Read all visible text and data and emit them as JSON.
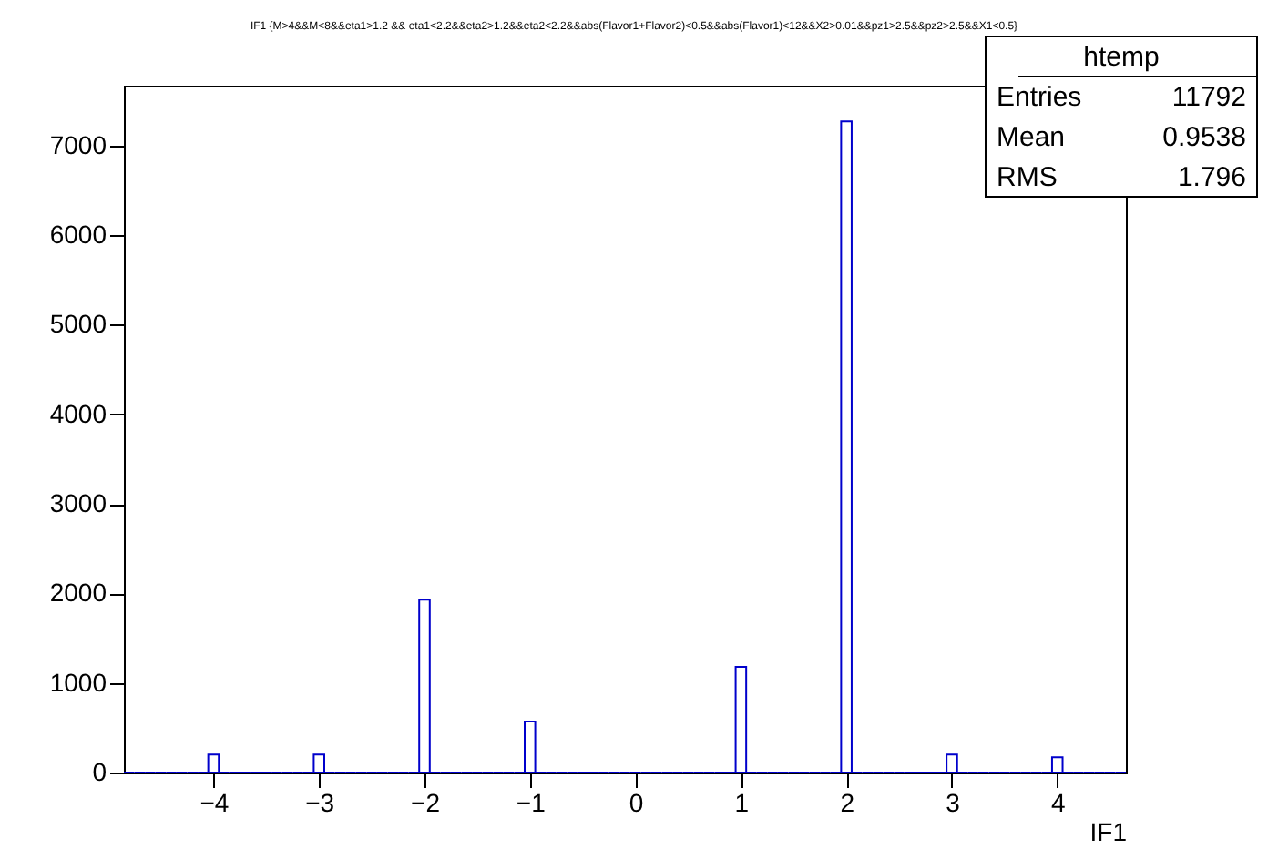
{
  "chart_data": {
    "type": "histogram",
    "title": "IF1 {M>4&&M<8&&eta1>1.2 && eta1<2.2&&eta2>1.2&&eta2<2.2&&abs(Flavor1+Flavor2)<0.5&&abs(Flavor1)<12&&X2>0.01&&pz1>2.5&&pz2>2.5&&X1<0.5}",
    "xlabel": "IF1",
    "bins": [
      -4.85,
      -4.75,
      -4.65,
      -4.55,
      -4.45,
      -4.35,
      -4.25,
      -4.15,
      -4.05,
      -3.95,
      -3.85,
      -3.75,
      -3.65,
      -3.55,
      -3.45,
      -3.35,
      -3.25,
      -3.15,
      -3.05,
      -2.95,
      -2.85,
      -2.75,
      -2.65,
      -2.55,
      -2.45,
      -2.35,
      -2.25,
      -2.15,
      -2.05,
      -1.95,
      -1.85,
      -1.75,
      -1.65,
      -1.55,
      -1.45,
      -1.35,
      -1.25,
      -1.15,
      -1.05,
      -0.95,
      -0.85,
      -0.75,
      -0.65,
      -0.55,
      -0.45,
      -0.35,
      -0.25,
      -0.15,
      -0.05,
      0.05,
      0.15,
      0.25,
      0.35,
      0.45,
      0.55,
      0.65,
      0.75,
      0.85,
      0.95,
      1.05,
      1.15,
      1.25,
      1.35,
      1.45,
      1.55,
      1.65,
      1.75,
      1.85,
      1.95,
      2.05,
      2.15,
      2.25,
      2.35,
      2.45,
      2.55,
      2.65,
      2.75,
      2.85,
      2.95,
      3.05,
      3.15,
      3.25,
      3.35,
      3.45,
      3.55,
      3.65,
      3.75,
      3.85,
      3.95,
      4.05,
      4.15,
      4.25,
      4.35,
      4.45,
      4.55,
      4.65
    ],
    "values": [
      0,
      0,
      0,
      0,
      0,
      0,
      0,
      0,
      200,
      0,
      0,
      0,
      0,
      0,
      0,
      0,
      0,
      0,
      200,
      0,
      0,
      0,
      0,
      0,
      0,
      0,
      0,
      0,
      1930,
      0,
      0,
      0,
      0,
      0,
      0,
      0,
      0,
      0,
      570,
      0,
      0,
      0,
      0,
      0,
      0,
      0,
      0,
      0,
      0,
      0,
      0,
      0,
      0,
      0,
      0,
      0,
      0,
      0,
      1180,
      0,
      0,
      0,
      0,
      0,
      0,
      0,
      0,
      0,
      7270,
      0,
      0,
      0,
      0,
      0,
      0,
      0,
      0,
      0,
      200,
      0,
      0,
      0,
      0,
      0,
      0,
      0,
      0,
      0,
      170,
      0,
      0,
      0,
      0,
      0,
      0
    ],
    "color": "#0000cc",
    "xlim": [
      -4.85,
      4.65
    ],
    "xticks": [
      -4,
      -3,
      -2,
      -1,
      0,
      1,
      2,
      3,
      4
    ],
    "ylim": [
      0,
      7670
    ],
    "yticks": [
      0,
      1000,
      2000,
      3000,
      4000,
      5000,
      6000,
      7000
    ],
    "grid": false,
    "annotations": [
      "htemp",
      "Entries 11792",
      "Mean 0.9538",
      "RMS 1.796"
    ]
  }
}
